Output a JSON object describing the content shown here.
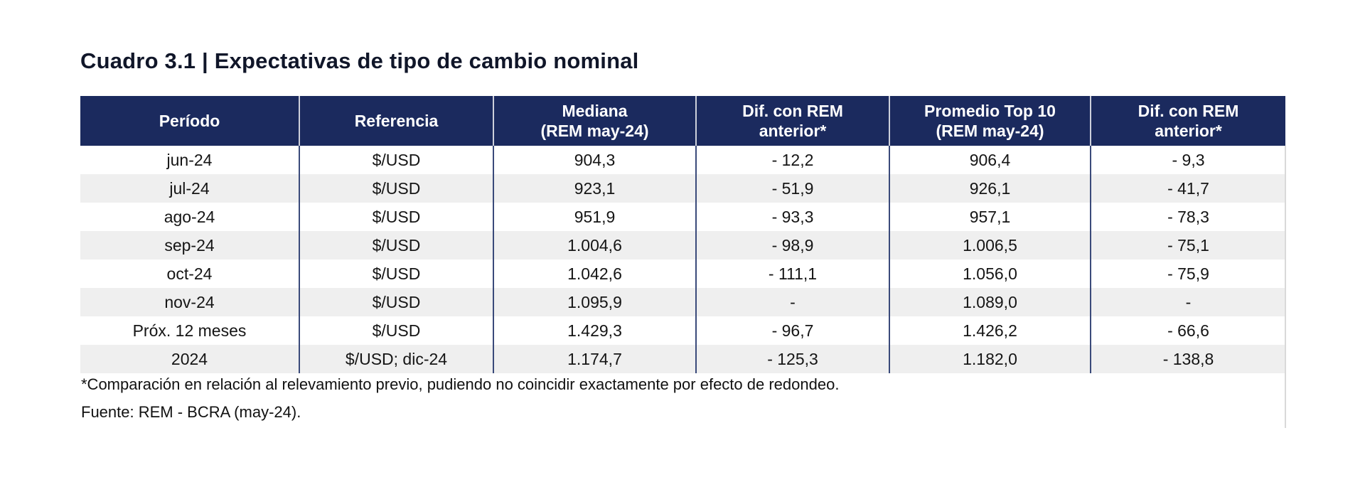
{
  "title": "Cuadro 3.1 | Expectativas de tipo de cambio nominal",
  "table": {
    "header_bg": "#1b2a5e",
    "zebra_color": "#efefef",
    "separator_color": "#3a4a7a",
    "headers": [
      {
        "line1": "Período",
        "line2": ""
      },
      {
        "line1": "Referencia",
        "line2": ""
      },
      {
        "line1": "Mediana",
        "line2": "(REM may-24)"
      },
      {
        "line1": "Dif. con REM",
        "line2": "anterior*"
      },
      {
        "line1": "Promedio Top 10",
        "line2": "(REM may-24)"
      },
      {
        "line1": "Dif. con REM",
        "line2": "anterior*"
      }
    ],
    "rows": [
      [
        "jun-24",
        "$/USD",
        "904,3",
        "- 12,2",
        "906,4",
        "- 9,3"
      ],
      [
        "jul-24",
        "$/USD",
        "923,1",
        "- 51,9",
        "926,1",
        "- 41,7"
      ],
      [
        "ago-24",
        "$/USD",
        "951,9",
        "- 93,3",
        "957,1",
        "- 78,3"
      ],
      [
        "sep-24",
        "$/USD",
        "1.004,6",
        "- 98,9",
        "1.006,5",
        "- 75,1"
      ],
      [
        "oct-24",
        "$/USD",
        "1.042,6",
        "- 111,1",
        "1.056,0",
        "- 75,9"
      ],
      [
        "nov-24",
        "$/USD",
        "1.095,9",
        "-",
        "1.089,0",
        "-"
      ],
      [
        "Próx. 12 meses",
        "$/USD",
        "1.429,3",
        "- 96,7",
        "1.426,2",
        "- 66,6"
      ],
      [
        "2024",
        "$/USD; dic-24",
        "1.174,7",
        "- 125,3",
        "1.182,0",
        "- 138,8"
      ]
    ]
  },
  "footnote": "*Comparación en relación al relevamiento previo, pudiendo no coincidir exactamente por efecto de redondeo.",
  "source": "Fuente: REM - BCRA (may-24)."
}
